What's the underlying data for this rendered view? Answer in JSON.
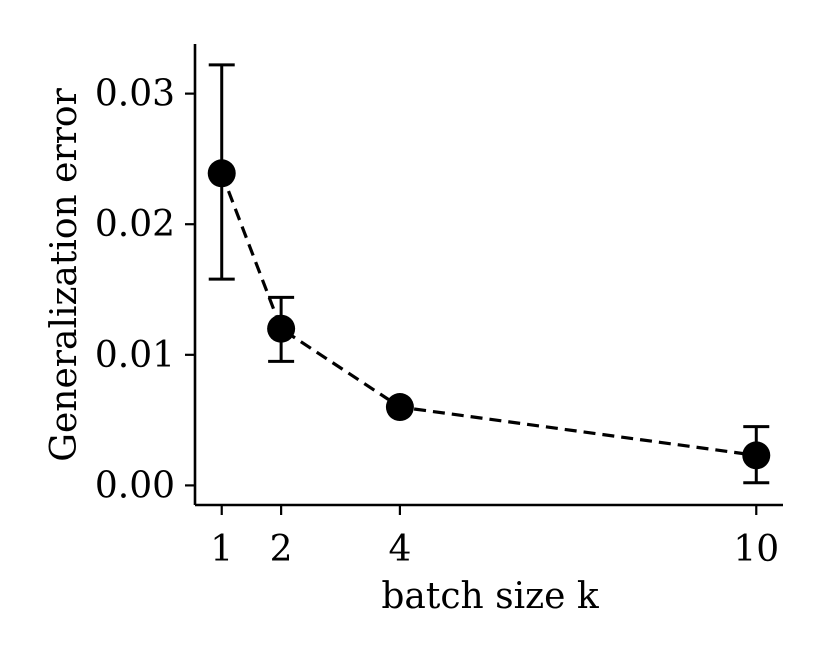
{
  "chart_data": {
    "type": "line",
    "title": "",
    "xlabel": "batch size k",
    "ylabel": "Generalization error",
    "x": [
      1,
      2,
      4,
      10
    ],
    "series": [
      {
        "values": [
          0.0239,
          0.012,
          0.006,
          0.0023
        ],
        "error_low": [
          0.0158,
          0.0095,
          0.006,
          0.0002
        ],
        "error_high": [
          0.0322,
          0.0144,
          0.006,
          0.0045
        ],
        "line_style": "dashed",
        "marker": "circle",
        "color": "#000000"
      }
    ],
    "xlim": [
      0.55,
      10.45
    ],
    "ylim": [
      -0.0015,
      0.0338
    ],
    "xticks": [
      1,
      2,
      4,
      10
    ],
    "xtick_labels": [
      "1",
      "2",
      "4",
      "10"
    ],
    "yticks": [
      0.0,
      0.01,
      0.02,
      0.03
    ],
    "ytick_labels": [
      "0.00",
      "0.01",
      "0.02",
      "0.03"
    ],
    "grid": false,
    "legend": "none"
  }
}
